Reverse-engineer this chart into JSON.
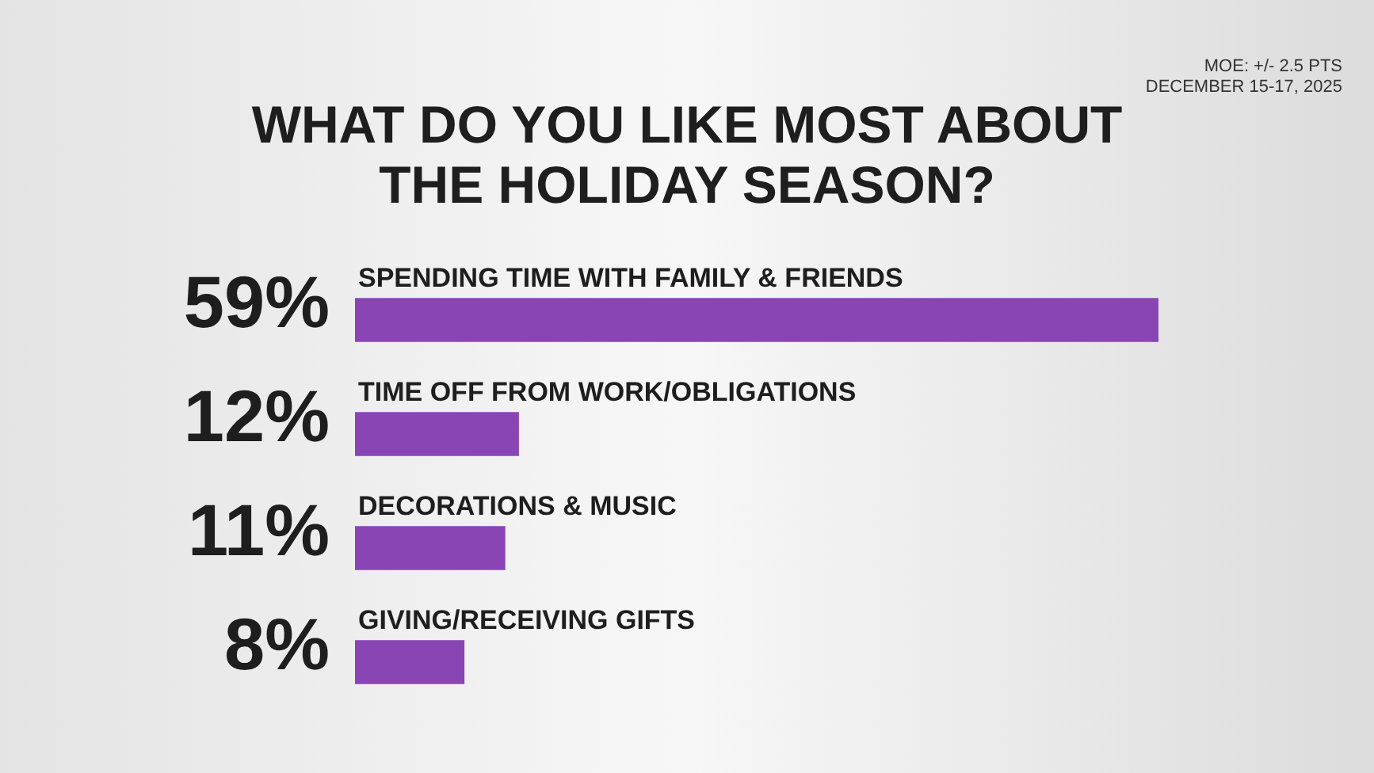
{
  "chart_data": {
    "type": "bar",
    "orientation": "horizontal",
    "title": "WHAT DO YOU LIKE MOST ABOUT THE HOLIDAY SEASON?",
    "annotations": [
      "MOE: +/- 2.5 PTS",
      "DECEMBER 15-17, 2025"
    ],
    "categories": [
      "SPENDING TIME WITH FAMILY & FRIENDS",
      "TIME OFF FROM WORK/OBLIGATIONS",
      "DECORATIONS & MUSIC",
      "GIVING/RECEIVING GIFTS"
    ],
    "values": [
      59,
      12,
      11,
      8
    ],
    "value_labels": [
      "59%",
      "12%",
      "11%",
      "8%"
    ],
    "color": "#8a45b5",
    "legend": false
  }
}
